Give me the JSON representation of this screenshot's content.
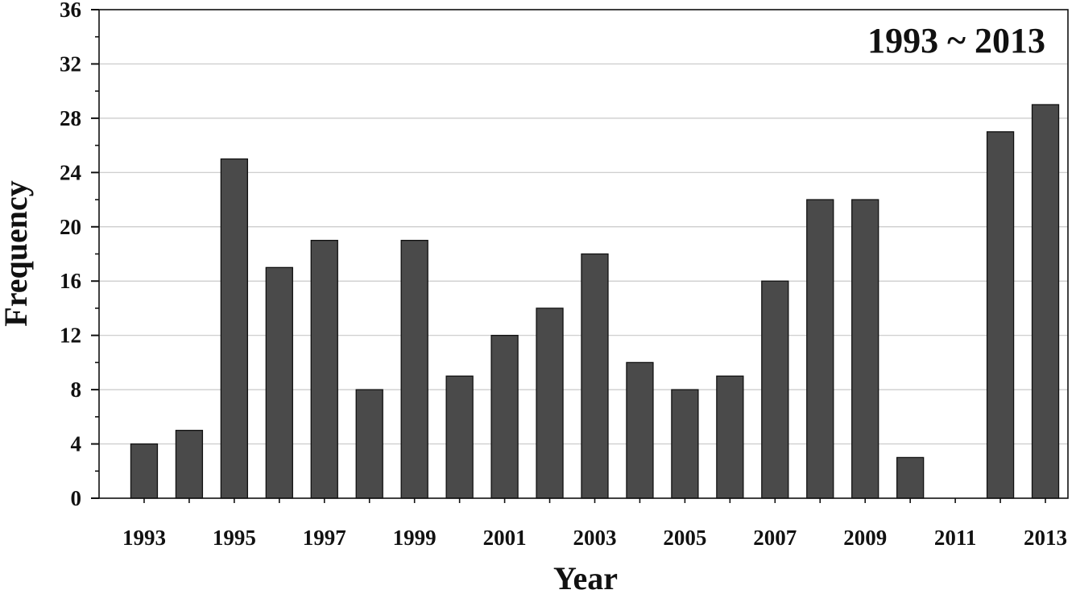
{
  "chart_data": {
    "type": "bar",
    "annotation": "1993 ~ 2013",
    "xlabel": "Year",
    "ylabel": "Frequency",
    "categories": [
      "1993",
      "1994",
      "1995",
      "1996",
      "1997",
      "1998",
      "1999",
      "2000",
      "2001",
      "2002",
      "2003",
      "2004",
      "2005",
      "2006",
      "2007",
      "2008",
      "2009",
      "2010",
      "2011",
      "2012",
      "2013"
    ],
    "x_tick_labels": [
      "1993",
      "1995",
      "1997",
      "1999",
      "2001",
      "2003",
      "2005",
      "2007",
      "2009",
      "2011",
      "2013"
    ],
    "values": [
      4,
      5,
      25,
      17,
      19,
      8,
      19,
      9,
      12,
      14,
      18,
      10,
      8,
      9,
      16,
      22,
      22,
      3,
      0,
      27,
      29
    ],
    "ylim": [
      0,
      36
    ],
    "y_ticks": [
      0,
      4,
      8,
      12,
      16,
      20,
      24,
      28,
      32,
      36
    ],
    "grid": true,
    "bar_color": "#4a4a4a",
    "bar_edge_color": "#111111",
    "grid_color": "#c8c8c8"
  }
}
